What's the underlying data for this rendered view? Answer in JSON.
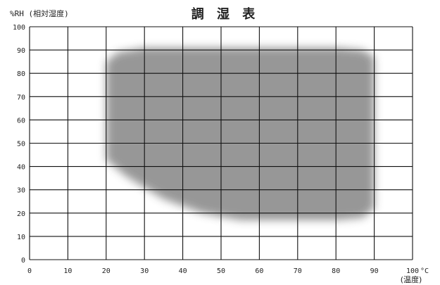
{
  "chart_data": {
    "type": "area",
    "title": "調 湿 表",
    "ylabel": "%RH (相対湿度)",
    "xlabel": "(温度)",
    "x_unit": "°C",
    "xlim": [
      0,
      100
    ],
    "ylim": [
      0,
      100
    ],
    "x_ticks": [
      "0",
      "10",
      "20",
      "30",
      "40",
      "50",
      "60",
      "70",
      "80",
      "90",
      "100"
    ],
    "y_ticks": [
      "0",
      "10",
      "20",
      "30",
      "40",
      "50",
      "60",
      "70",
      "80",
      "90",
      "100"
    ],
    "grid": true,
    "fill_color": "#8f8f8f",
    "region": {
      "name": "",
      "upper": [
        {
          "x": 20,
          "y": 85
        },
        {
          "x": 23,
          "y": 89
        },
        {
          "x": 30,
          "y": 91
        },
        {
          "x": 80,
          "y": 91
        },
        {
          "x": 87,
          "y": 90
        },
        {
          "x": 90,
          "y": 87
        }
      ],
      "lower": [
        {
          "x": 20,
          "y": 43
        },
        {
          "x": 25,
          "y": 36
        },
        {
          "x": 35,
          "y": 26
        },
        {
          "x": 45,
          "y": 20
        },
        {
          "x": 55,
          "y": 17
        },
        {
          "x": 80,
          "y": 17
        },
        {
          "x": 87,
          "y": 18
        },
        {
          "x": 90,
          "y": 22
        }
      ]
    }
  }
}
